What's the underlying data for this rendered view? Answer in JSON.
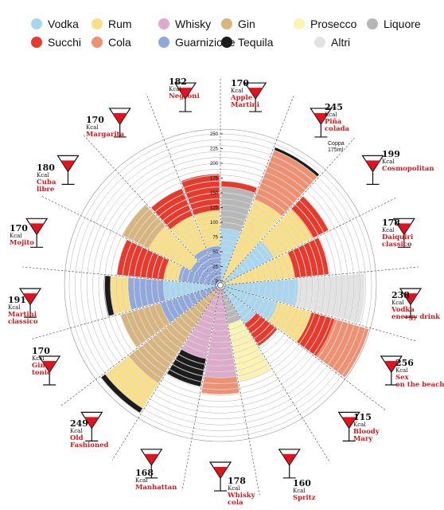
{
  "legend": [
    {
      "label": "Vodka",
      "color": "#a8d6ef"
    },
    {
      "label": "Rum",
      "color": "#f9df85"
    },
    {
      "label": "Whisky",
      "color": "#dcaacb"
    },
    {
      "label": "Gin",
      "color": "#d8b57f"
    },
    {
      "label": "Prosecco",
      "color": "#fcf2b1"
    },
    {
      "label": "Liquore",
      "color": "#b7b7b7"
    },
    {
      "label": "Succhi",
      "color": "#e53a2c"
    },
    {
      "label": "Cola",
      "color": "#ee9172"
    },
    {
      "label": "Guarnizione",
      "color": "#91a8dd"
    },
    {
      "label": "Tequila",
      "color": "#1c1c1c"
    },
    {
      "label": "Altri",
      "color": "#e3e3e3"
    }
  ],
  "chart_data": {
    "type": "radial_bar",
    "unit": "Kcal",
    "axis_ticks": [
      0,
      25,
      50,
      75,
      100,
      125,
      150,
      175,
      200,
      225,
      250
    ],
    "rmax": 250,
    "drinks": [
      {
        "name": "Apple Martini",
        "kcal": 170,
        "note": "",
        "segments": [
          [
            "Vodka",
            90
          ],
          [
            "Liquore",
            70
          ],
          [
            "Succhi",
            10
          ]
        ]
      },
      {
        "name": "Piña colada",
        "kcal": 245,
        "note": "Coppa 175ml",
        "segments": [
          [
            "Rum",
            150
          ],
          [
            "Cola",
            90
          ],
          [
            "Tequila",
            5
          ]
        ]
      },
      {
        "name": "Cosmopolitan",
        "kcal": 199,
        "note": "",
        "segments": [
          [
            "Vodka",
            95
          ],
          [
            "Rum",
            74
          ],
          [
            "Succhi",
            30
          ]
        ]
      },
      {
        "name": "Daiquiri classico",
        "kcal": 178,
        "note": "",
        "segments": [
          [
            "Rum",
            120
          ],
          [
            "Succhi",
            58
          ]
        ]
      },
      {
        "name": "Vodka energy drink",
        "kcal": 238,
        "note": "",
        "segments": [
          [
            "Vodka",
            125
          ],
          [
            "Altri",
            113
          ]
        ]
      },
      {
        "name": "Sex on the beach",
        "kcal": 256,
        "note": "",
        "segments": [
          [
            "Vodka",
            95
          ],
          [
            "Rum",
            60
          ],
          [
            "Succhi",
            40
          ],
          [
            "Cola",
            61
          ]
        ]
      },
      {
        "name": "Bloody Mary",
        "kcal": 115,
        "note": "",
        "segments": [
          [
            "Vodka",
            70
          ],
          [
            "Succhi",
            45
          ]
        ]
      },
      {
        "name": "Spritz",
        "kcal": 160,
        "note": "",
        "segments": [
          [
            "Liquore",
            60
          ],
          [
            "Prosecco",
            100
          ]
        ]
      },
      {
        "name": "Whisky cola",
        "kcal": 178,
        "note": "",
        "segments": [
          [
            "Whisky",
            150
          ],
          [
            "Cola",
            28
          ]
        ]
      },
      {
        "name": "Manhattan",
        "kcal": 168,
        "note": "",
        "segments": [
          [
            "Whisky",
            120
          ],
          [
            "Tequila",
            48
          ]
        ]
      },
      {
        "name": "Old Fashioned",
        "kcal": 249,
        "note": "",
        "segments": [
          [
            "Gin",
            190
          ],
          [
            "Rum",
            50
          ],
          [
            "Tequila",
            9
          ]
        ]
      },
      {
        "name": "Gin tonic",
        "kcal": 170,
        "note": "",
        "segments": [
          [
            "Guarnizione",
            100
          ],
          [
            "Gin",
            70
          ]
        ]
      },
      {
        "name": "Martini classico",
        "kcal": 191,
        "note": "",
        "segments": [
          [
            "Vodka",
            90
          ],
          [
            "Guarnizione",
            60
          ],
          [
            "Rum",
            30
          ],
          [
            "Tequila",
            11
          ]
        ]
      },
      {
        "name": "Mojito",
        "kcal": 170,
        "note": "",
        "segments": [
          [
            "Guarnizione",
            65
          ],
          [
            "Rum",
            25
          ],
          [
            "Succhi",
            80
          ]
        ]
      },
      {
        "name": "Cuba libre",
        "kcal": 180,
        "note": "",
        "segments": [
          [
            "Guarnizione",
            50
          ],
          [
            "Rum",
            80
          ],
          [
            "Gin",
            50
          ]
        ]
      },
      {
        "name": "Margarita",
        "kcal": 170,
        "note": "",
        "segments": [
          [
            "Guarnizione",
            60
          ],
          [
            "Rum",
            60
          ],
          [
            "Succhi",
            50
          ]
        ]
      },
      {
        "name": "Negroni",
        "kcal": 182,
        "note": "",
        "segments": [
          [
            "Guarnizione",
            60
          ],
          [
            "Rum",
            60
          ],
          [
            "Succhi",
            62
          ]
        ]
      }
    ]
  }
}
